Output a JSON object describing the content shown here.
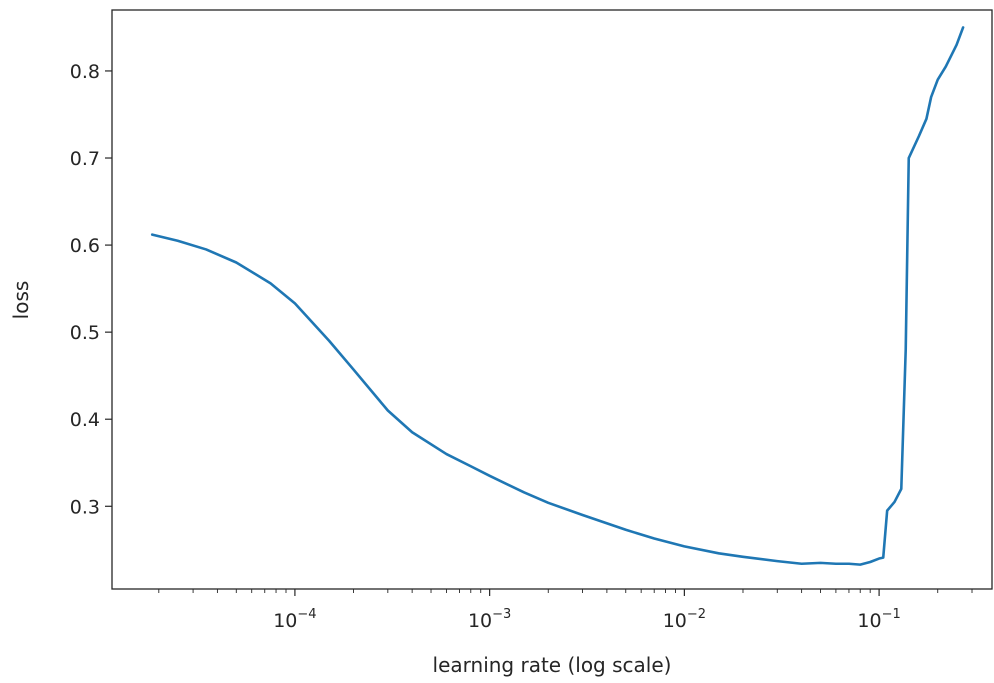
{
  "chart_data": {
    "type": "line",
    "title": "",
    "xlabel": "learning rate (log scale)",
    "ylabel": "loss",
    "xscale": "log",
    "xlim": [
      1.15e-05,
      0.38
    ],
    "ylim": [
      0.205,
      0.87
    ],
    "grid": false,
    "legend": "none",
    "x_ticks": [
      {
        "value": 0.0001,
        "base": "10",
        "exp": "−4"
      },
      {
        "value": 0.001,
        "base": "10",
        "exp": "−3"
      },
      {
        "value": 0.01,
        "base": "10",
        "exp": "−2"
      },
      {
        "value": 0.1,
        "base": "10",
        "exp": "−1"
      }
    ],
    "y_ticks": [
      {
        "value": 0.3,
        "label": "0.3"
      },
      {
        "value": 0.4,
        "label": "0.4"
      },
      {
        "value": 0.5,
        "label": "0.5"
      },
      {
        "value": 0.6,
        "label": "0.6"
      },
      {
        "value": 0.7,
        "label": "0.7"
      },
      {
        "value": 0.8,
        "label": "0.8"
      }
    ],
    "series": [
      {
        "color": "#1f77b4",
        "x": [
          1.85e-05,
          2.5e-05,
          3.5e-05,
          5e-05,
          7.5e-05,
          0.0001,
          0.00015,
          0.0002,
          0.0003,
          0.0004,
          0.0006,
          0.0008,
          0.001,
          0.0015,
          0.002,
          0.003,
          0.005,
          0.007,
          0.01,
          0.015,
          0.02,
          0.03,
          0.04,
          0.05,
          0.06,
          0.07,
          0.08,
          0.09,
          0.1,
          0.105,
          0.11,
          0.12,
          0.13,
          0.137,
          0.142,
          0.16,
          0.175,
          0.185,
          0.2,
          0.22,
          0.25,
          0.27
        ],
        "y": [
          0.612,
          0.605,
          0.595,
          0.58,
          0.556,
          0.533,
          0.49,
          0.457,
          0.41,
          0.385,
          0.36,
          0.346,
          0.335,
          0.316,
          0.304,
          0.29,
          0.273,
          0.263,
          0.254,
          0.246,
          0.242,
          0.237,
          0.234,
          0.235,
          0.234,
          0.234,
          0.233,
          0.236,
          0.24,
          0.241,
          0.295,
          0.305,
          0.32,
          0.48,
          0.7,
          0.725,
          0.745,
          0.77,
          0.79,
          0.805,
          0.83,
          0.85
        ]
      }
    ]
  }
}
